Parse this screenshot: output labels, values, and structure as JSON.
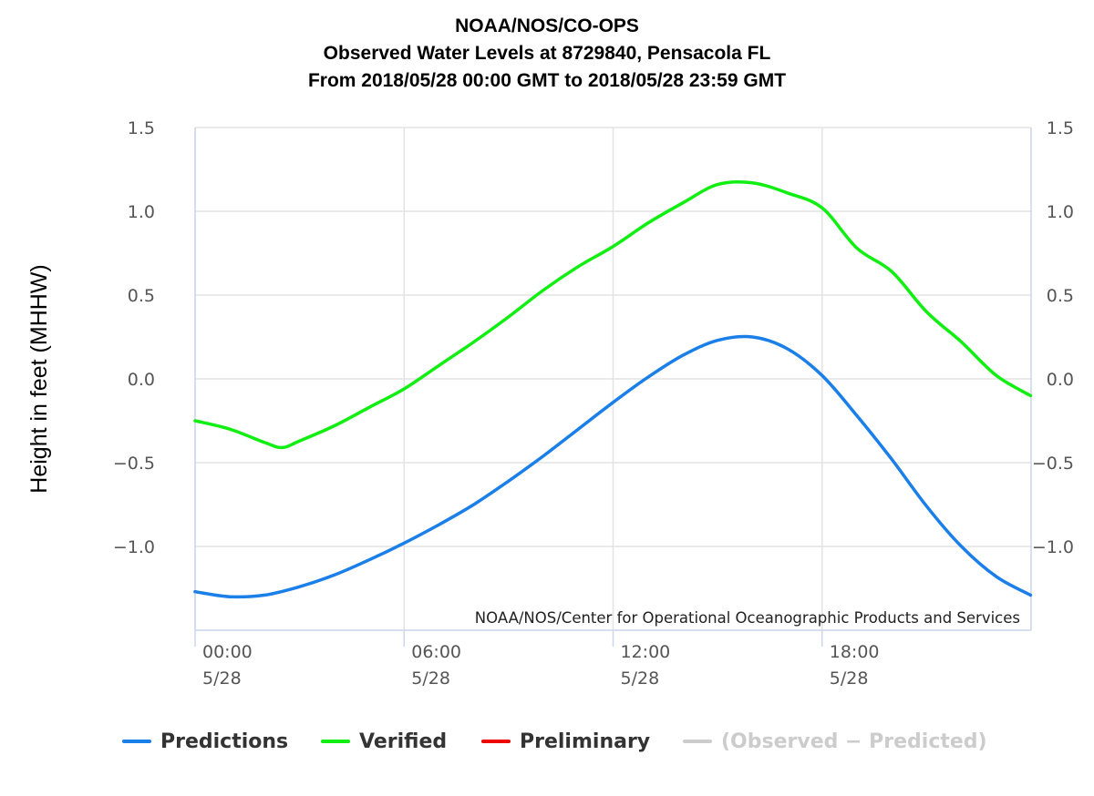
{
  "chart_data": {
    "type": "line",
    "title": [
      "NOAA/NOS/CO-OPS",
      "Observed Water Levels at 8729840, Pensacola FL",
      "From 2018/05/28 00:00 GMT to 2018/05/28 23:59 GMT"
    ],
    "ylabel": "Height in feet (MHHW)",
    "ylim": [
      -1.5,
      1.5
    ],
    "xlim": [
      "2018-05-28 00:00",
      "2018-05-28 23:59"
    ],
    "y_ticks": [
      "1.5",
      "1.0",
      "0.5",
      "0.0",
      "−0.5",
      "−1.0"
    ],
    "x_ticks": [
      {
        "time": "00:00",
        "date": "5/28"
      },
      {
        "time": "06:00",
        "date": "5/28"
      },
      {
        "time": "12:00",
        "date": "5/28"
      },
      {
        "time": "18:00",
        "date": "5/28"
      }
    ],
    "grid": true,
    "legend_position": "bottom",
    "credit": "NOAA/NOS/Center for Operational Oceanographic Products and Services",
    "series": [
      {
        "name": "Predictions",
        "color": "#1a7fe8",
        "x": [
          "00:00",
          "01:00",
          "02:00",
          "03:00",
          "04:00",
          "05:00",
          "06:00",
          "07:00",
          "08:00",
          "09:00",
          "10:00",
          "11:00",
          "12:00",
          "13:00",
          "14:00",
          "15:00",
          "16:00",
          "17:00",
          "18:00",
          "19:00",
          "20:00",
          "21:00",
          "22:00",
          "23:00",
          "23:59"
        ],
        "values": [
          -1.27,
          -1.3,
          -1.29,
          -1.24,
          -1.17,
          -1.08,
          -0.98,
          -0.87,
          -0.75,
          -0.61,
          -0.46,
          -0.3,
          -0.14,
          0.01,
          0.14,
          0.23,
          0.25,
          0.18,
          0.02,
          -0.22,
          -0.48,
          -0.76,
          -1.0,
          -1.18,
          -1.29
        ]
      },
      {
        "name": "Verified",
        "color": "#11ee11",
        "x": [
          "00:00",
          "01:00",
          "02:00",
          "02:30",
          "03:00",
          "04:00",
          "05:00",
          "06:00",
          "07:00",
          "08:00",
          "09:00",
          "10:00",
          "11:00",
          "12:00",
          "13:00",
          "14:00",
          "15:00",
          "16:00",
          "17:00",
          "18:00",
          "19:00",
          "20:00",
          "21:00",
          "22:00",
          "23:00",
          "23:59"
        ],
        "values": [
          -0.25,
          -0.3,
          -0.38,
          -0.41,
          -0.37,
          -0.28,
          -0.17,
          -0.06,
          0.08,
          0.22,
          0.37,
          0.53,
          0.67,
          0.79,
          0.93,
          1.05,
          1.16,
          1.17,
          1.11,
          1.02,
          0.78,
          0.64,
          0.4,
          0.22,
          0.02,
          -0.1
        ]
      },
      {
        "name": "Preliminary",
        "color": "#ee0000",
        "x": [],
        "values": []
      },
      {
        "name": "(Observed − Predicted)",
        "color": "#cccccc",
        "x": [],
        "values": []
      }
    ]
  }
}
